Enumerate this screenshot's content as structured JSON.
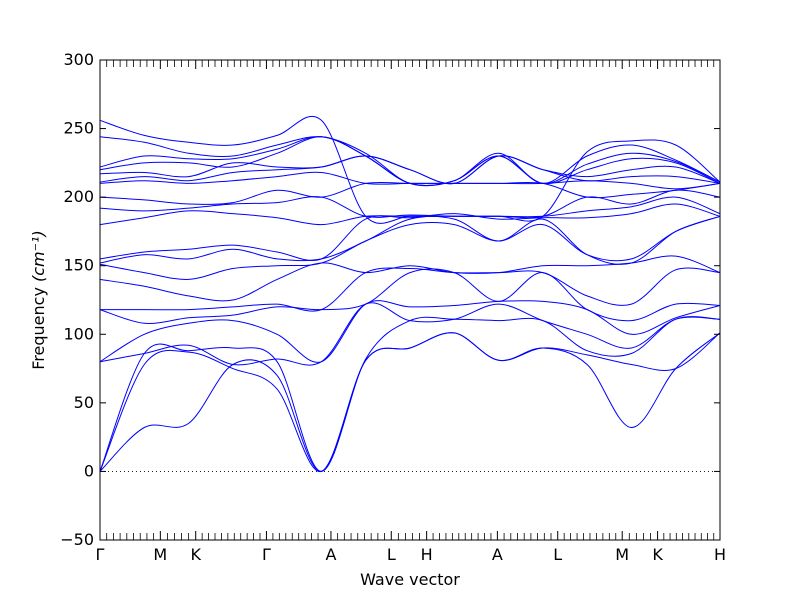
{
  "chart_data": {
    "type": "line",
    "title": "",
    "xlabel": "Wave vector",
    "ylabel": "Frequency",
    "ylabel_unit": "(cm⁻¹)",
    "ylim": [
      -50,
      300
    ],
    "yticks": [
      -50,
      0,
      50,
      100,
      150,
      200,
      250,
      300
    ],
    "grid": false,
    "zero_line": {
      "value": 0,
      "style": "dotted"
    },
    "line_color": "#0000ff",
    "high_symmetry_points": [
      {
        "label": "Γ",
        "x": 0.0
      },
      {
        "label": "M",
        "x": 0.58
      },
      {
        "label": "K",
        "x": 0.92
      },
      {
        "label": "Γ",
        "x": 1.6
      },
      {
        "label": "A",
        "x": 2.22
      },
      {
        "label": "L",
        "x": 2.8
      },
      {
        "label": "H",
        "x": 3.14
      },
      {
        "label": "A",
        "x": 3.82
      },
      {
        "label": "L",
        "x": 4.4
      },
      {
        "label": "M",
        "x": 5.02
      },
      {
        "label": "K",
        "x": 5.36
      },
      {
        "label": "H",
        "x": 5.96
      }
    ],
    "series": [
      {
        "values": [
          0,
          32,
          35,
          78,
          70,
          0,
          81,
          90,
          101,
          81,
          90,
          78,
          32,
          75,
          101
        ]
      },
      {
        "values": [
          0,
          78,
          87,
          75,
          60,
          0,
          81,
          90,
          101,
          81,
          90,
          85,
          78,
          75,
          101
        ]
      },
      {
        "values": [
          0,
          86,
          88,
          90,
          80,
          0,
          82,
          110,
          111,
          110,
          110,
          88,
          86,
          111,
          111
        ]
      },
      {
        "values": [
          80,
          86,
          92,
          78,
          82,
          80,
          122,
          110,
          111,
          122,
          110,
          100,
          90,
          111,
          111
        ]
      },
      {
        "values": [
          80,
          100,
          108,
          110,
          100,
          80,
          122,
          120,
          121,
          124,
          124,
          118,
          100,
          112,
          121
        ]
      },
      {
        "values": [
          118,
          108,
          112,
          114,
          120,
          118,
          122,
          145,
          145,
          124,
          145,
          118,
          110,
          122,
          121
        ]
      },
      {
        "values": [
          118,
          118,
          118,
          120,
          122,
          118,
          145,
          148,
          145,
          145,
          145,
          128,
          122,
          147,
          145
        ]
      },
      {
        "values": [
          140,
          135,
          128,
          125,
          140,
          152,
          145,
          150,
          145,
          145,
          150,
          150,
          152,
          157,
          145
        ]
      },
      {
        "values": [
          151,
          145,
          140,
          148,
          150,
          152,
          168,
          180,
          180,
          168,
          180,
          158,
          155,
          175,
          186
        ]
      },
      {
        "values": [
          152,
          158,
          155,
          162,
          155,
          155,
          168,
          184,
          184,
          168,
          184,
          158,
          152,
          175,
          186
        ]
      },
      {
        "values": [
          155,
          160,
          162,
          165,
          160,
          155,
          184,
          185,
          188,
          184,
          185,
          185,
          188,
          195,
          186
        ]
      },
      {
        "values": [
          180,
          185,
          190,
          188,
          185,
          180,
          186,
          186,
          186,
          186,
          186,
          190,
          193,
          200,
          188
        ]
      },
      {
        "values": [
          192,
          190,
          192,
          195,
          196,
          200,
          186,
          187,
          186,
          186,
          186,
          200,
          195,
          205,
          200
        ]
      },
      {
        "values": [
          200,
          198,
          195,
          196,
          205,
          200,
          210,
          210,
          210,
          210,
          210,
          200,
          202,
          205,
          210
        ]
      },
      {
        "values": [
          210,
          212,
          210,
          212,
          215,
          218,
          210,
          210,
          210,
          210,
          210,
          212,
          210,
          206,
          210
        ]
      },
      {
        "values": [
          211,
          215,
          212,
          218,
          220,
          222,
          230,
          220,
          210,
          230,
          220,
          212,
          215,
          215,
          210
        ]
      },
      {
        "values": [
          217,
          218,
          215,
          225,
          222,
          222,
          230,
          220,
          210,
          230,
          220,
          215,
          220,
          222,
          210
        ]
      },
      {
        "values": [
          220,
          225,
          225,
          222,
          232,
          244,
          230,
          210,
          212,
          230,
          210,
          220,
          228,
          225,
          210
        ]
      },
      {
        "values": [
          222,
          230,
          228,
          228,
          235,
          244,
          230,
          210,
          212,
          230,
          210,
          224,
          232,
          226,
          211
        ]
      },
      {
        "values": [
          244,
          240,
          232,
          230,
          238,
          244,
          232,
          210,
          212,
          232,
          210,
          230,
          238,
          227,
          211
        ]
      },
      {
        "values": [
          256,
          245,
          240,
          238,
          245,
          256,
          186,
          186,
          186,
          186,
          186,
          233,
          241,
          238,
          211
        ]
      }
    ]
  }
}
